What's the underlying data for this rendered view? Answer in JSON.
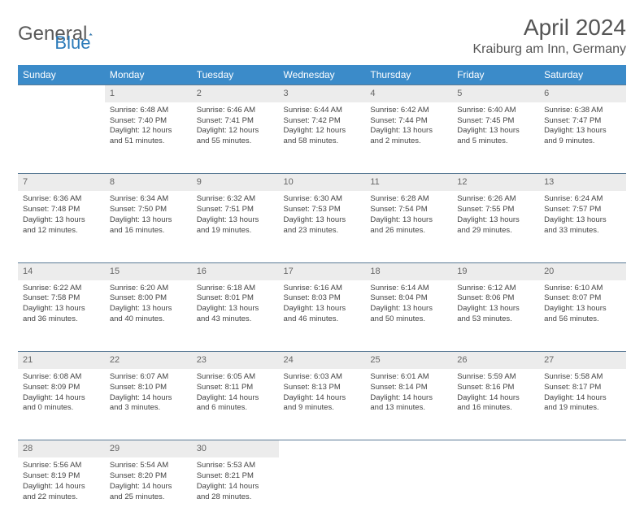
{
  "brand": {
    "part1": "General",
    "part2": "Blue"
  },
  "title": "April 2024",
  "location": "Kraiburg am Inn, Germany",
  "colors": {
    "header_bg": "#3b8bc9",
    "daynum_bg": "#ececec",
    "rule": "#5a7a95",
    "text": "#444444"
  },
  "week_headers": [
    "Sunday",
    "Monday",
    "Tuesday",
    "Wednesday",
    "Thursday",
    "Friday",
    "Saturday"
  ],
  "weeks": [
    {
      "nums": [
        "",
        "1",
        "2",
        "3",
        "4",
        "5",
        "6"
      ],
      "cells": [
        null,
        {
          "sr": "Sunrise: 6:48 AM",
          "ss": "Sunset: 7:40 PM",
          "dl": "Daylight: 12 hours and 51 minutes."
        },
        {
          "sr": "Sunrise: 6:46 AM",
          "ss": "Sunset: 7:41 PM",
          "dl": "Daylight: 12 hours and 55 minutes."
        },
        {
          "sr": "Sunrise: 6:44 AM",
          "ss": "Sunset: 7:42 PM",
          "dl": "Daylight: 12 hours and 58 minutes."
        },
        {
          "sr": "Sunrise: 6:42 AM",
          "ss": "Sunset: 7:44 PM",
          "dl": "Daylight: 13 hours and 2 minutes."
        },
        {
          "sr": "Sunrise: 6:40 AM",
          "ss": "Sunset: 7:45 PM",
          "dl": "Daylight: 13 hours and 5 minutes."
        },
        {
          "sr": "Sunrise: 6:38 AM",
          "ss": "Sunset: 7:47 PM",
          "dl": "Daylight: 13 hours and 9 minutes."
        }
      ]
    },
    {
      "nums": [
        "7",
        "8",
        "9",
        "10",
        "11",
        "12",
        "13"
      ],
      "cells": [
        {
          "sr": "Sunrise: 6:36 AM",
          "ss": "Sunset: 7:48 PM",
          "dl": "Daylight: 13 hours and 12 minutes."
        },
        {
          "sr": "Sunrise: 6:34 AM",
          "ss": "Sunset: 7:50 PM",
          "dl": "Daylight: 13 hours and 16 minutes."
        },
        {
          "sr": "Sunrise: 6:32 AM",
          "ss": "Sunset: 7:51 PM",
          "dl": "Daylight: 13 hours and 19 minutes."
        },
        {
          "sr": "Sunrise: 6:30 AM",
          "ss": "Sunset: 7:53 PM",
          "dl": "Daylight: 13 hours and 23 minutes."
        },
        {
          "sr": "Sunrise: 6:28 AM",
          "ss": "Sunset: 7:54 PM",
          "dl": "Daylight: 13 hours and 26 minutes."
        },
        {
          "sr": "Sunrise: 6:26 AM",
          "ss": "Sunset: 7:55 PM",
          "dl": "Daylight: 13 hours and 29 minutes."
        },
        {
          "sr": "Sunrise: 6:24 AM",
          "ss": "Sunset: 7:57 PM",
          "dl": "Daylight: 13 hours and 33 minutes."
        }
      ]
    },
    {
      "nums": [
        "14",
        "15",
        "16",
        "17",
        "18",
        "19",
        "20"
      ],
      "cells": [
        {
          "sr": "Sunrise: 6:22 AM",
          "ss": "Sunset: 7:58 PM",
          "dl": "Daylight: 13 hours and 36 minutes."
        },
        {
          "sr": "Sunrise: 6:20 AM",
          "ss": "Sunset: 8:00 PM",
          "dl": "Daylight: 13 hours and 40 minutes."
        },
        {
          "sr": "Sunrise: 6:18 AM",
          "ss": "Sunset: 8:01 PM",
          "dl": "Daylight: 13 hours and 43 minutes."
        },
        {
          "sr": "Sunrise: 6:16 AM",
          "ss": "Sunset: 8:03 PM",
          "dl": "Daylight: 13 hours and 46 minutes."
        },
        {
          "sr": "Sunrise: 6:14 AM",
          "ss": "Sunset: 8:04 PM",
          "dl": "Daylight: 13 hours and 50 minutes."
        },
        {
          "sr": "Sunrise: 6:12 AM",
          "ss": "Sunset: 8:06 PM",
          "dl": "Daylight: 13 hours and 53 minutes."
        },
        {
          "sr": "Sunrise: 6:10 AM",
          "ss": "Sunset: 8:07 PM",
          "dl": "Daylight: 13 hours and 56 minutes."
        }
      ]
    },
    {
      "nums": [
        "21",
        "22",
        "23",
        "24",
        "25",
        "26",
        "27"
      ],
      "cells": [
        {
          "sr": "Sunrise: 6:08 AM",
          "ss": "Sunset: 8:09 PM",
          "dl": "Daylight: 14 hours and 0 minutes."
        },
        {
          "sr": "Sunrise: 6:07 AM",
          "ss": "Sunset: 8:10 PM",
          "dl": "Daylight: 14 hours and 3 minutes."
        },
        {
          "sr": "Sunrise: 6:05 AM",
          "ss": "Sunset: 8:11 PM",
          "dl": "Daylight: 14 hours and 6 minutes."
        },
        {
          "sr": "Sunrise: 6:03 AM",
          "ss": "Sunset: 8:13 PM",
          "dl": "Daylight: 14 hours and 9 minutes."
        },
        {
          "sr": "Sunrise: 6:01 AM",
          "ss": "Sunset: 8:14 PM",
          "dl": "Daylight: 14 hours and 13 minutes."
        },
        {
          "sr": "Sunrise: 5:59 AM",
          "ss": "Sunset: 8:16 PM",
          "dl": "Daylight: 14 hours and 16 minutes."
        },
        {
          "sr": "Sunrise: 5:58 AM",
          "ss": "Sunset: 8:17 PM",
          "dl": "Daylight: 14 hours and 19 minutes."
        }
      ]
    },
    {
      "nums": [
        "28",
        "29",
        "30",
        "",
        "",
        "",
        ""
      ],
      "cells": [
        {
          "sr": "Sunrise: 5:56 AM",
          "ss": "Sunset: 8:19 PM",
          "dl": "Daylight: 14 hours and 22 minutes."
        },
        {
          "sr": "Sunrise: 5:54 AM",
          "ss": "Sunset: 8:20 PM",
          "dl": "Daylight: 14 hours and 25 minutes."
        },
        {
          "sr": "Sunrise: 5:53 AM",
          "ss": "Sunset: 8:21 PM",
          "dl": "Daylight: 14 hours and 28 minutes."
        },
        null,
        null,
        null,
        null
      ]
    }
  ]
}
